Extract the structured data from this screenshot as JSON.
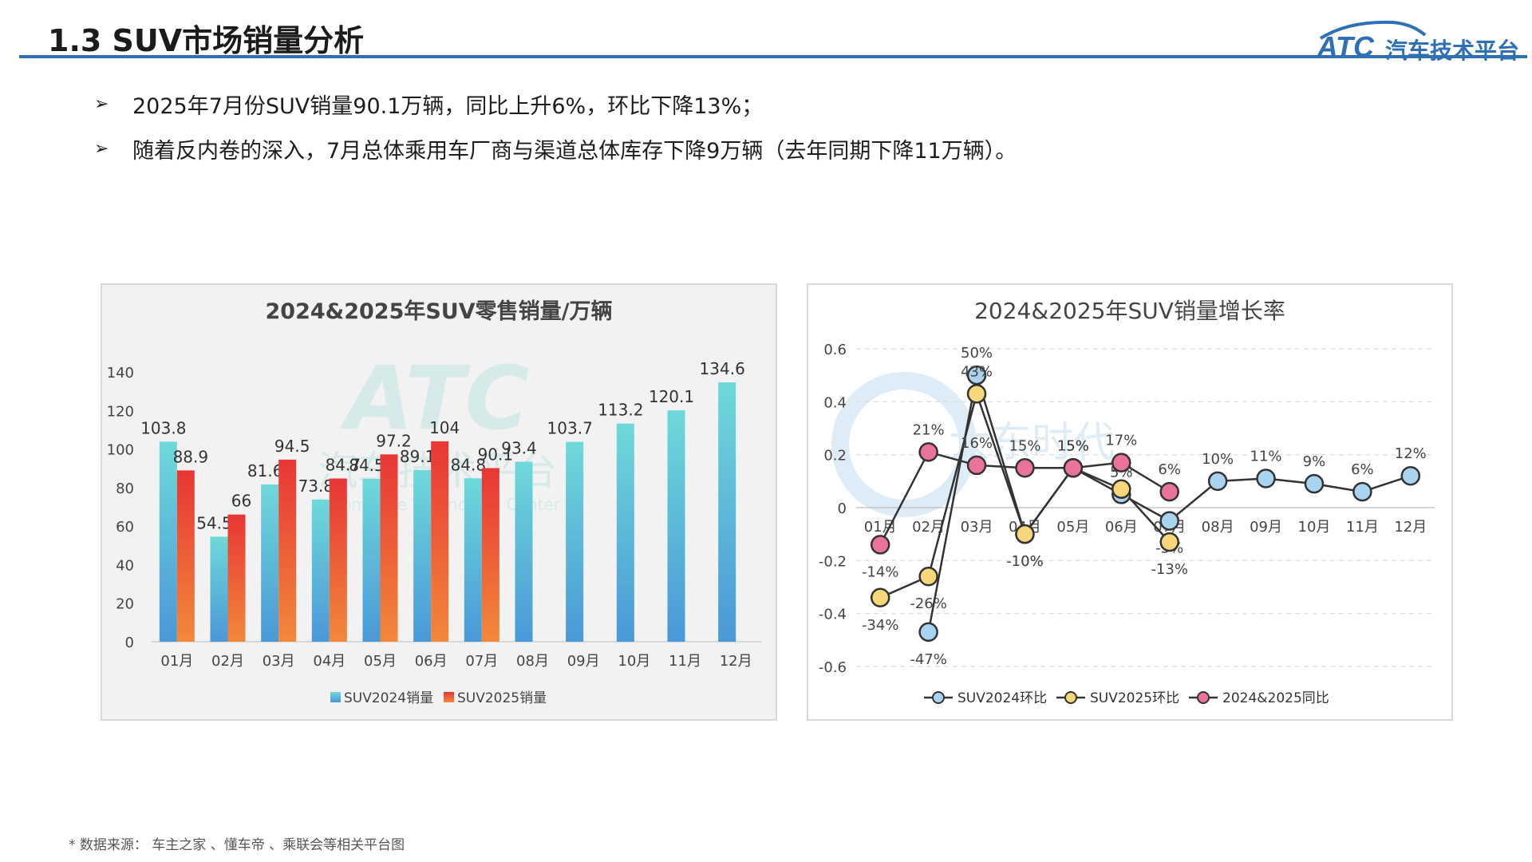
{
  "header": {
    "title": "1.3 SUV市场销量分析",
    "logo_mark": "ATC",
    "logo_text": "汽车技术平台"
  },
  "bullets": [
    {
      "text": "2025年7月份SUV销量90.1万辆，同比上升6%，环比下降13%；"
    },
    {
      "text": "随着反内卷的深入，7月总体乘用车厂商与渠道总体库存下降9万辆（去年同期下降11万辆）。"
    }
  ],
  "footnote": "* 数据来源： 车主之家 、懂车帝 、乘联会等相关平台图",
  "watermarks": {
    "left_mark": "ATC",
    "left_cn": "汽车技术平台",
    "left_en": "Automotive Technology Center",
    "right_cn": "大东时代"
  },
  "colors": {
    "accent": "#2f6fb5",
    "bar2024_top": "#6fd9d9",
    "bar2024_bottom": "#4a98d8",
    "bar2025_top": "#e83636",
    "bar2025_bottom": "#f2883a",
    "line2024": "#a9d4f0",
    "line2025": "#f8d77a",
    "yoy": "#e9739a"
  },
  "chart_data": [
    {
      "type": "bar",
      "title": "2024&2025年SUV零售销量/万辆",
      "categories": [
        "01月",
        "02月",
        "03月",
        "04月",
        "05月",
        "06月",
        "07月",
        "08月",
        "09月",
        "10月",
        "11月",
        "12月"
      ],
      "series": [
        {
          "name": "SUV2024销量",
          "values": [
            103.8,
            54.5,
            81.6,
            73.8,
            84.5,
            89.1,
            84.8,
            93.4,
            103.7,
            113.2,
            120.1,
            134.6
          ]
        },
        {
          "name": "SUV2025销量",
          "values": [
            88.9,
            66,
            94.5,
            84.7,
            97.2,
            104,
            90.1,
            null,
            null,
            null,
            null,
            null
          ]
        }
      ],
      "ylim": [
        0,
        140
      ],
      "yticks": [
        0,
        20,
        40,
        60,
        80,
        100,
        120,
        140
      ],
      "legend": "bottom",
      "grid": false
    },
    {
      "type": "line",
      "title": "2024&2025年SUV销量增长率",
      "categories": [
        "01月",
        "02月",
        "03月",
        "04月",
        "05月",
        "06月",
        "07月",
        "08月",
        "09月",
        "10月",
        "11月",
        "12月"
      ],
      "series": [
        {
          "name": "SUV2024环比",
          "values": [
            null,
            -0.47,
            0.5,
            -0.1,
            0.15,
            0.05,
            -0.05,
            0.1,
            0.11,
            0.09,
            0.06,
            0.12
          ],
          "labels": [
            "",
            "-47%",
            "50%",
            "-10%",
            "15%",
            "5%",
            "-5%",
            "10%",
            "11%",
            "9%",
            "6%",
            "12%"
          ]
        },
        {
          "name": "SUV2025环比",
          "values": [
            -0.34,
            -0.26,
            0.43,
            -0.1,
            0.15,
            0.07,
            -0.13,
            null,
            null,
            null,
            null,
            null
          ],
          "labels": [
            "-34%",
            "-26%",
            "43%",
            "-10%",
            "15%",
            "7%",
            "-13%",
            "",
            "",
            "",
            "",
            ""
          ]
        },
        {
          "name": "2024&2025同比",
          "values": [
            -0.14,
            0.21,
            0.16,
            0.15,
            0.15,
            0.17,
            0.06,
            null,
            null,
            null,
            null,
            null
          ],
          "labels": [
            "-14%",
            "21%",
            "16%",
            "15%",
            "15%",
            "17%",
            "6%",
            "",
            "",
            "",
            "",
            ""
          ]
        }
      ],
      "ylim": [
        -0.6,
        0.6
      ],
      "yticks": [
        "0.6",
        "0.4",
        "0.2",
        "0",
        "-0.2",
        "-0.4",
        "-0.6"
      ],
      "legend": "bottom",
      "grid": true
    }
  ]
}
